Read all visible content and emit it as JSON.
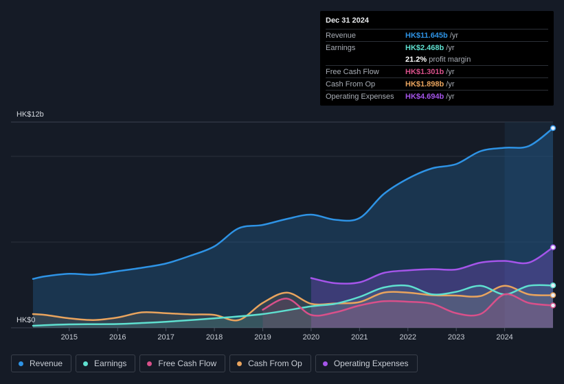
{
  "tooltip": {
    "date": "Dec 31 2024",
    "rows": [
      {
        "name": "Revenue",
        "value": "HK$11.645b",
        "unit": "/yr",
        "color": "#2e93e5"
      },
      {
        "name": "Earnings",
        "value": "HK$2.468b",
        "unit": "/yr",
        "color": "#5fe0d0"
      },
      {
        "name": "",
        "value": "21.2%",
        "unit": "profit margin",
        "color": "#ffffff"
      },
      {
        "name": "Free Cash Flow",
        "value": "HK$1.301b",
        "unit": "/yr",
        "color": "#d9508a"
      },
      {
        "name": "Cash From Op",
        "value": "HK$1.898b",
        "unit": "/yr",
        "color": "#e9a45e"
      },
      {
        "name": "Operating Expenses",
        "value": "HK$4.694b",
        "unit": "/yr",
        "color": "#a555ea"
      }
    ]
  },
  "legend": [
    {
      "label": "Revenue",
      "color": "#2e93e5"
    },
    {
      "label": "Earnings",
      "color": "#5fe0d0"
    },
    {
      "label": "Free Cash Flow",
      "color": "#d9508a"
    },
    {
      "label": "Cash From Op",
      "color": "#e9a45e"
    },
    {
      "label": "Operating Expenses",
      "color": "#a555ea"
    }
  ],
  "chart_data": {
    "type": "area",
    "title": "",
    "xlabel": "",
    "ylabel": "",
    "y_top_label": "HK$12b",
    "y_bottom_label": "HK$0",
    "ylim": [
      0,
      12
    ],
    "xlim": [
      2014.25,
      2025.0
    ],
    "x_ticks": [
      "2015",
      "2016",
      "2017",
      "2018",
      "2019",
      "2020",
      "2021",
      "2022",
      "2023",
      "2024"
    ],
    "x_tick_values": [
      2015,
      2016,
      2017,
      2018,
      2019,
      2020,
      2021,
      2022,
      2023,
      2024
    ],
    "forecast_start": 2024.0,
    "units": "HK$ billions",
    "series": [
      {
        "name": "Revenue",
        "color": "#2e93e5",
        "points": [
          [
            2014.25,
            2.85
          ],
          [
            2014.5,
            3.0
          ],
          [
            2015.0,
            3.15
          ],
          [
            2015.5,
            3.1
          ],
          [
            2016.0,
            3.3
          ],
          [
            2016.5,
            3.5
          ],
          [
            2017.0,
            3.75
          ],
          [
            2017.5,
            4.2
          ],
          [
            2018.0,
            4.75
          ],
          [
            2018.5,
            5.8
          ],
          [
            2019.0,
            6.0
          ],
          [
            2019.5,
            6.35
          ],
          [
            2020.0,
            6.6
          ],
          [
            2020.5,
            6.3
          ],
          [
            2021.0,
            6.4
          ],
          [
            2021.5,
            7.8
          ],
          [
            2022.0,
            8.7
          ],
          [
            2022.5,
            9.3
          ],
          [
            2023.0,
            9.55
          ],
          [
            2023.5,
            10.3
          ],
          [
            2024.0,
            10.5
          ],
          [
            2024.5,
            10.6
          ],
          [
            2025.0,
            11.645
          ]
        ]
      },
      {
        "name": "Earnings",
        "color": "#5fe0d0",
        "points": [
          [
            2014.25,
            0.12
          ],
          [
            2015.0,
            0.2
          ],
          [
            2016.0,
            0.22
          ],
          [
            2016.5,
            0.28
          ],
          [
            2017.0,
            0.35
          ],
          [
            2018.0,
            0.55
          ],
          [
            2019.0,
            0.8
          ],
          [
            2020.0,
            1.25
          ],
          [
            2020.5,
            1.4
          ],
          [
            2021.0,
            1.8
          ],
          [
            2021.5,
            2.35
          ],
          [
            2022.0,
            2.45
          ],
          [
            2022.5,
            1.95
          ],
          [
            2023.0,
            2.1
          ],
          [
            2023.5,
            2.45
          ],
          [
            2024.0,
            1.95
          ],
          [
            2024.5,
            2.45
          ],
          [
            2025.0,
            2.468
          ]
        ]
      },
      {
        "name": "Free Cash Flow",
        "color": "#d9508a",
        "points": [
          [
            2019.0,
            1.05
          ],
          [
            2019.5,
            1.7
          ],
          [
            2020.0,
            0.75
          ],
          [
            2020.5,
            0.9
          ],
          [
            2021.0,
            1.3
          ],
          [
            2021.5,
            1.55
          ],
          [
            2022.0,
            1.52
          ],
          [
            2022.5,
            1.4
          ],
          [
            2023.0,
            0.85
          ],
          [
            2023.5,
            0.8
          ],
          [
            2024.0,
            1.95
          ],
          [
            2024.5,
            1.45
          ],
          [
            2025.0,
            1.301
          ]
        ]
      },
      {
        "name": "Cash From Op",
        "color": "#e9a45e",
        "points": [
          [
            2014.25,
            0.8
          ],
          [
            2014.5,
            0.75
          ],
          [
            2015.0,
            0.55
          ],
          [
            2015.5,
            0.45
          ],
          [
            2016.0,
            0.6
          ],
          [
            2016.5,
            0.9
          ],
          [
            2017.0,
            0.85
          ],
          [
            2017.5,
            0.78
          ],
          [
            2018.0,
            0.75
          ],
          [
            2018.5,
            0.45
          ],
          [
            2019.0,
            1.45
          ],
          [
            2019.5,
            2.05
          ],
          [
            2020.0,
            1.4
          ],
          [
            2020.5,
            1.42
          ],
          [
            2021.0,
            1.5
          ],
          [
            2021.5,
            2.05
          ],
          [
            2022.0,
            2.05
          ],
          [
            2022.5,
            1.9
          ],
          [
            2023.0,
            1.88
          ],
          [
            2023.5,
            1.85
          ],
          [
            2024.0,
            2.45
          ],
          [
            2024.5,
            1.95
          ],
          [
            2025.0,
            1.898
          ]
        ]
      },
      {
        "name": "Operating Expenses",
        "color": "#a555ea",
        "points": [
          [
            2020.0,
            2.9
          ],
          [
            2020.5,
            2.6
          ],
          [
            2021.0,
            2.65
          ],
          [
            2021.5,
            3.2
          ],
          [
            2022.0,
            3.35
          ],
          [
            2022.5,
            3.42
          ],
          [
            2023.0,
            3.4
          ],
          [
            2023.5,
            3.8
          ],
          [
            2024.0,
            3.9
          ],
          [
            2024.5,
            3.8
          ],
          [
            2025.0,
            4.694
          ]
        ]
      }
    ]
  }
}
